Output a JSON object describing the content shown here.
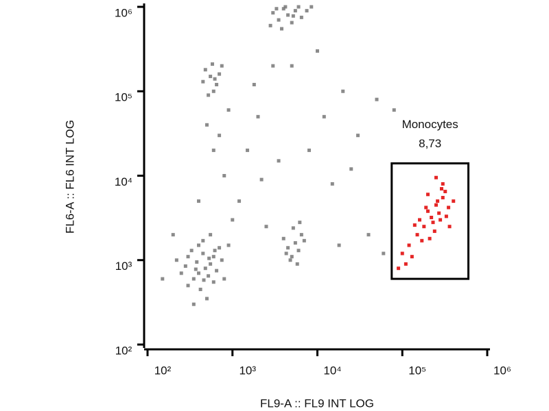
{
  "chart_data": {
    "type": "scatter",
    "xlabel": "FL9-A :: FL9 INT LOG",
    "ylabel": "FL6-A :: FL6 INT LOG",
    "xscale": "log",
    "yscale": "log",
    "xlim": [
      100,
      1000000
    ],
    "ylim": [
      100,
      1000000
    ],
    "xticks": [
      {
        "value": 100,
        "label": "10²"
      },
      {
        "value": 1000,
        "label": "10³"
      },
      {
        "value": 10000,
        "label": "10⁴"
      },
      {
        "value": 100000,
        "label": "10⁵"
      },
      {
        "value": 1000000,
        "label": "10⁶"
      }
    ],
    "yticks": [
      {
        "value": 100,
        "label": "10²"
      },
      {
        "value": 1000,
        "label": "10³"
      },
      {
        "value": 10000,
        "label": "10⁴"
      },
      {
        "value": 100000,
        "label": "10⁵"
      },
      {
        "value": 1000000,
        "label": "10⁶"
      }
    ],
    "series": [
      {
        "color": "#777777",
        "x": [
          480,
          400,
          550,
          350,
          600,
          300,
          450,
          700,
          380,
          520,
          420,
          650,
          280,
          330,
          750,
          500,
          250,
          600,
          450,
          900,
          350,
          220,
          800,
          400,
          550,
          300,
          460,
          620,
          370,
          530,
          4500,
          3500,
          5500,
          3000,
          6500,
          4000,
          5000,
          7500,
          2800,
          4200,
          6000,
          3800,
          5200,
          8500,
          3300,
          550,
          650,
          480,
          600,
          700,
          520,
          450,
          750,
          580,
          620,
          5500,
          4500,
          6500,
          5000,
          6000,
          4000,
          7000,
          5200,
          4800,
          6200,
          4300,
          5800,
          1500,
          2000,
          800,
          1200,
          3000,
          10000,
          20000,
          50000,
          30000,
          15000,
          700,
          500,
          1000,
          2500,
          18000,
          40000,
          60000,
          8000,
          150,
          200,
          1800,
          900,
          2200,
          12000,
          400,
          600,
          3500,
          25000,
          80000,
          5000
        ],
        "y": [
          800,
          700,
          900,
          600,
          1100,
          500,
          1200,
          1400,
          950,
          650,
          450,
          750,
          850,
          1300,
          1000,
          350,
          700,
          550,
          1700,
          1500,
          300,
          1000,
          600,
          1500,
          2000,
          1100,
          580,
          1300,
          780,
          1050,
          800000,
          700000,
          900000,
          850000,
          750000,
          950000,
          650000,
          900000,
          600000,
          1000000,
          1000000,
          550000,
          780000,
          1000000,
          950000,
          150000,
          120000,
          180000,
          100000,
          160000,
          90000,
          130000,
          200000,
          210000,
          140000,
          1600,
          1400,
          2000,
          1100,
          1300,
          1800,
          1700,
          2400,
          1000,
          2800,
          1200,
          900,
          20000,
          50000,
          10000,
          5000,
          200000,
          300000,
          100000,
          80000,
          30000,
          8000,
          30000,
          40000,
          3000,
          2500,
          1500,
          2000,
          1200,
          20000,
          600,
          2000,
          120000,
          60000,
          9000,
          50000,
          5000,
          20000,
          15000,
          12000,
          60000,
          200000
        ]
      },
      {
        "color": "#e00000",
        "x": [
          220000,
          250000,
          180000,
          300000,
          200000,
          280000,
          150000,
          320000,
          230000,
          170000,
          260000,
          120000,
          350000,
          190000,
          240000,
          100000,
          300000,
          210000,
          140000,
          270000,
          110000,
          330000,
          160000,
          290000,
          400000,
          130000,
          90000,
          250000,
          200000,
          360000
        ],
        "y": [
          3200,
          4500,
          2500,
          5500,
          3800,
          3000,
          2000,
          6500,
          2800,
          1700,
          5000,
          1500,
          4200,
          4200,
          2200,
          1200,
          8000,
          1800,
          2600,
          3600,
          900,
          3300,
          3000,
          7000,
          5000,
          1100,
          800,
          9500,
          6000,
          2500
        ]
      }
    ],
    "gate": {
      "label": "Monocytes",
      "values": [
        8.73
      ],
      "value_labels": [
        "8,73"
      ],
      "x": [
        75000,
        600000
      ],
      "y": [
        600,
        14000
      ],
      "color": "#000000"
    }
  }
}
